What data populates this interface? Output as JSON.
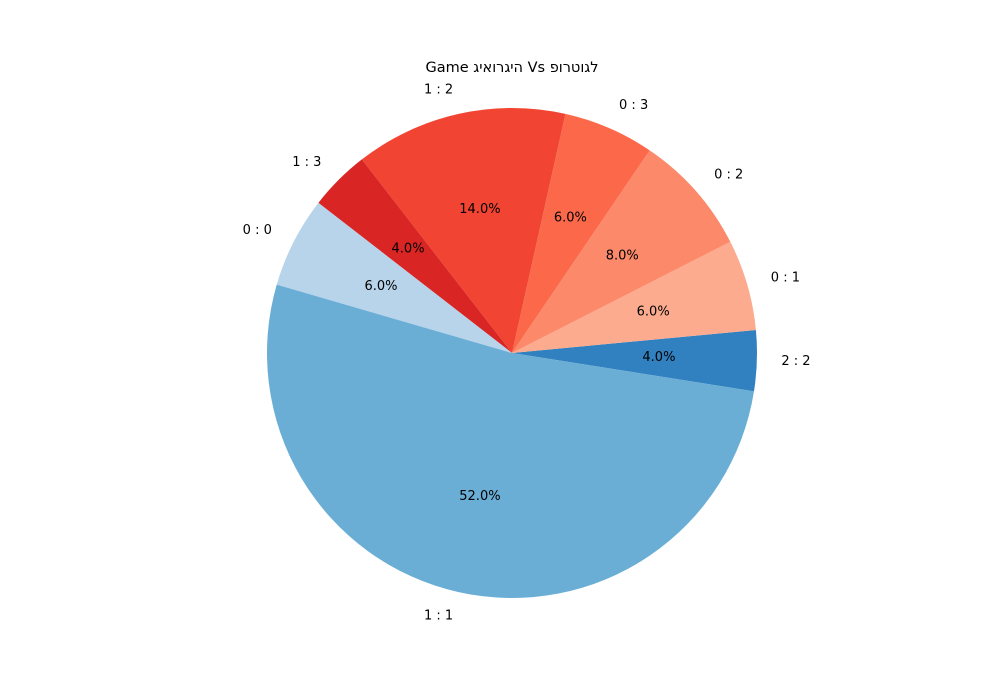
{
  "chart_data": {
    "type": "pie",
    "title": "Game היגרואיג Vs לגוטרופ",
    "start_angle_deg": -9,
    "direction": "counterclockwise",
    "slices": [
      {
        "label": "2 : 2",
        "value": 4.0,
        "pct_label": "4.0%",
        "color": "#3180bf"
      },
      {
        "label": "0 : 1",
        "value": 6.0,
        "pct_label": "6.0%",
        "color": "#fcab8f"
      },
      {
        "label": "0 : 2",
        "value": 8.0,
        "pct_label": "8.0%",
        "color": "#fc8a6a"
      },
      {
        "label": "0 : 3",
        "value": 6.0,
        "pct_label": "6.0%",
        "color": "#fb694a"
      },
      {
        "label": "1 : 2",
        "value": 14.0,
        "pct_label": "14.0%",
        "color": "#f14432"
      },
      {
        "label": "1 : 3",
        "value": 4.0,
        "pct_label": "4.0%",
        "color": "#d92523"
      },
      {
        "label": "0 : 0",
        "value": 6.0,
        "pct_label": "6.0%",
        "color": "#b7d4ea"
      },
      {
        "label": "1 : 1",
        "value": 52.0,
        "pct_label": "52.0%",
        "color": "#6aaed6"
      }
    ]
  }
}
